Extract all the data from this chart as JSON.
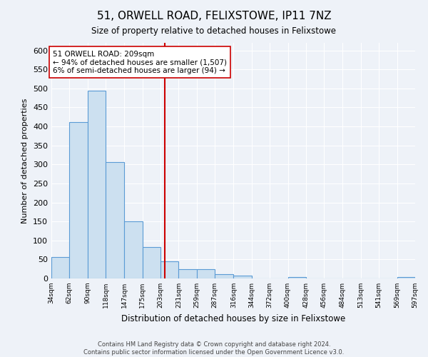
{
  "title": "51, ORWELL ROAD, FELIXSTOWE, IP11 7NZ",
  "subtitle": "Size of property relative to detached houses in Felixstowe",
  "xlabel": "Distribution of detached houses by size in Felixstowe",
  "ylabel": "Number of detached properties",
  "bin_edges": [
    34,
    62,
    90,
    118,
    147,
    175,
    203,
    231,
    259,
    287,
    316,
    344,
    372,
    400,
    428,
    456,
    484,
    513,
    541,
    569,
    597
  ],
  "bin_labels": [
    "34sqm",
    "62sqm",
    "90sqm",
    "118sqm",
    "147sqm",
    "175sqm",
    "203sqm",
    "231sqm",
    "259sqm",
    "287sqm",
    "316sqm",
    "344sqm",
    "372sqm",
    "400sqm",
    "428sqm",
    "456sqm",
    "484sqm",
    "513sqm",
    "541sqm",
    "569sqm",
    "597sqm"
  ],
  "counts": [
    57,
    411,
    494,
    307,
    150,
    83,
    45,
    25,
    25,
    11,
    8,
    0,
    0,
    3,
    0,
    0,
    0,
    0,
    0,
    3
  ],
  "bar_facecolor": "#cce0f0",
  "bar_edgecolor": "#5b9bd5",
  "property_value": 209,
  "vline_color": "#cc0000",
  "annotation_line1": "51 ORWELL ROAD: 209sqm",
  "annotation_line2": "← 94% of detached houses are smaller (1,507)",
  "annotation_line3": "6% of semi-detached houses are larger (94) →",
  "annotation_boxcolor": "white",
  "annotation_edgecolor": "#cc0000",
  "ylim": [
    0,
    620
  ],
  "yticks": [
    0,
    50,
    100,
    150,
    200,
    250,
    300,
    350,
    400,
    450,
    500,
    550,
    600
  ],
  "footer_line1": "Contains HM Land Registry data © Crown copyright and database right 2024.",
  "footer_line2": "Contains public sector information licensed under the Open Government Licence v3.0.",
  "bg_color": "#eef2f8",
  "grid_color": "white"
}
